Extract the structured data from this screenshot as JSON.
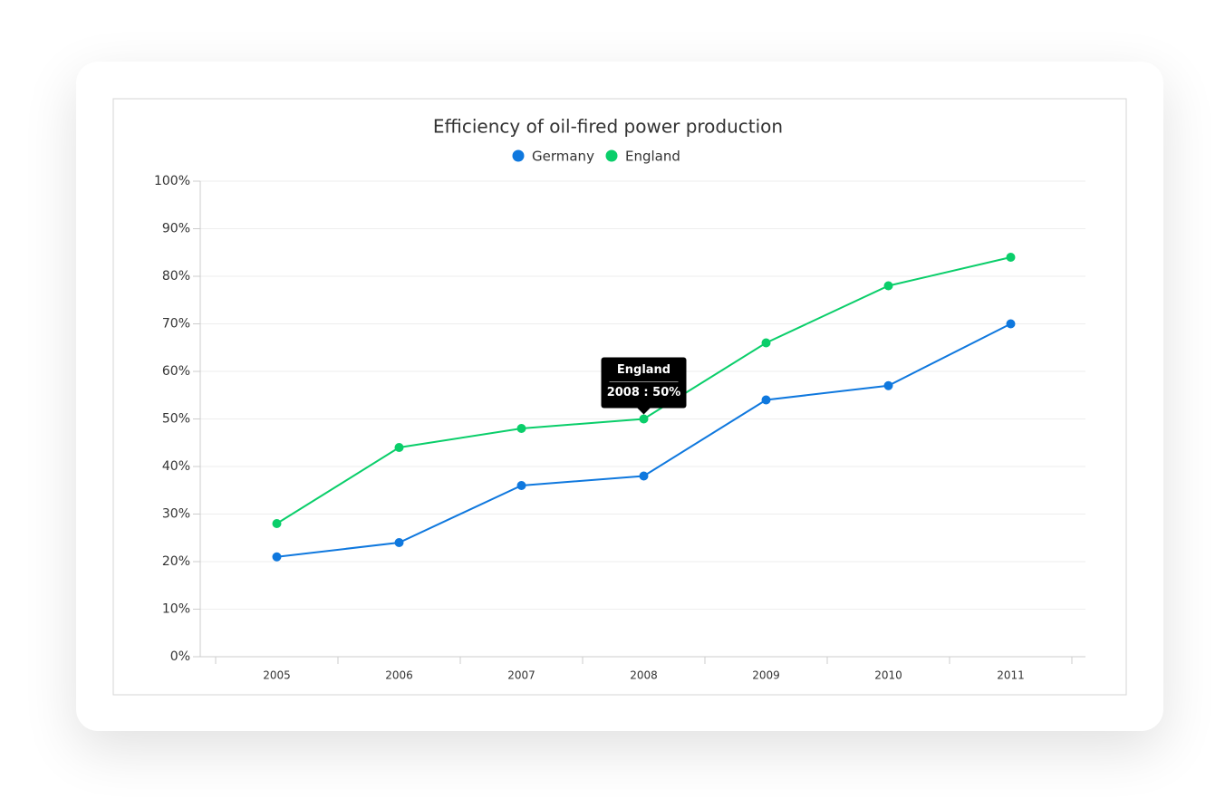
{
  "chart_data": {
    "type": "line",
    "title": "Efficiency of oil-fired power production",
    "categories": [
      "2005",
      "2006",
      "2007",
      "2008",
      "2009",
      "2010",
      "2011"
    ],
    "series": [
      {
        "name": "Germany",
        "color": "#0f78de",
        "values": [
          21,
          24,
          36,
          38,
          54,
          57,
          70
        ]
      },
      {
        "name": "England",
        "color": "#0ace6a",
        "values": [
          28,
          44,
          48,
          50,
          66,
          78,
          84
        ]
      }
    ],
    "ylim": [
      0,
      100
    ],
    "yticks": [
      {
        "value": 0,
        "label": "0%"
      },
      {
        "value": 10,
        "label": "10%"
      },
      {
        "value": 20,
        "label": "20%"
      },
      {
        "value": 30,
        "label": "30%"
      },
      {
        "value": 40,
        "label": "40%"
      },
      {
        "value": 50,
        "label": "50%"
      },
      {
        "value": 60,
        "label": "60%"
      },
      {
        "value": 70,
        "label": "70%"
      },
      {
        "value": 80,
        "label": "80%"
      },
      {
        "value": 90,
        "label": "90%"
      },
      {
        "value": 100,
        "label": "100%"
      }
    ],
    "grid": true,
    "legend": "top",
    "tooltip": {
      "title": "England",
      "label": "2008 : 50%"
    }
  }
}
